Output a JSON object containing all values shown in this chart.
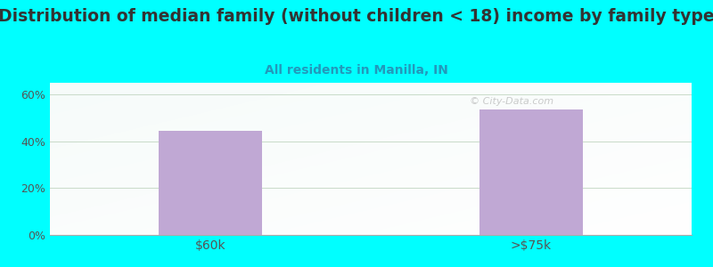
{
  "title": "Distribution of median family (without children < 18) income by family type",
  "subtitle": "All residents in Manilla, IN",
  "categories": [
    "$60k",
    ">$75k"
  ],
  "values": [
    44.5,
    53.5
  ],
  "bar_color": "#c0a8d4",
  "ylim_max": 65,
  "ytick_vals": [
    0,
    20,
    40,
    60
  ],
  "ytick_labels": [
    "0%",
    "20%",
    "40%",
    "60%"
  ],
  "background_outer": "#00ffff",
  "title_fontsize": 13.5,
  "subtitle_fontsize": 10,
  "title_color": "#333333",
  "subtitle_color": "#2299bb",
  "tick_color": "#555555",
  "grid_color": "#ccddcc",
  "bar_width": 0.32,
  "watermark": "© City-Data.com"
}
